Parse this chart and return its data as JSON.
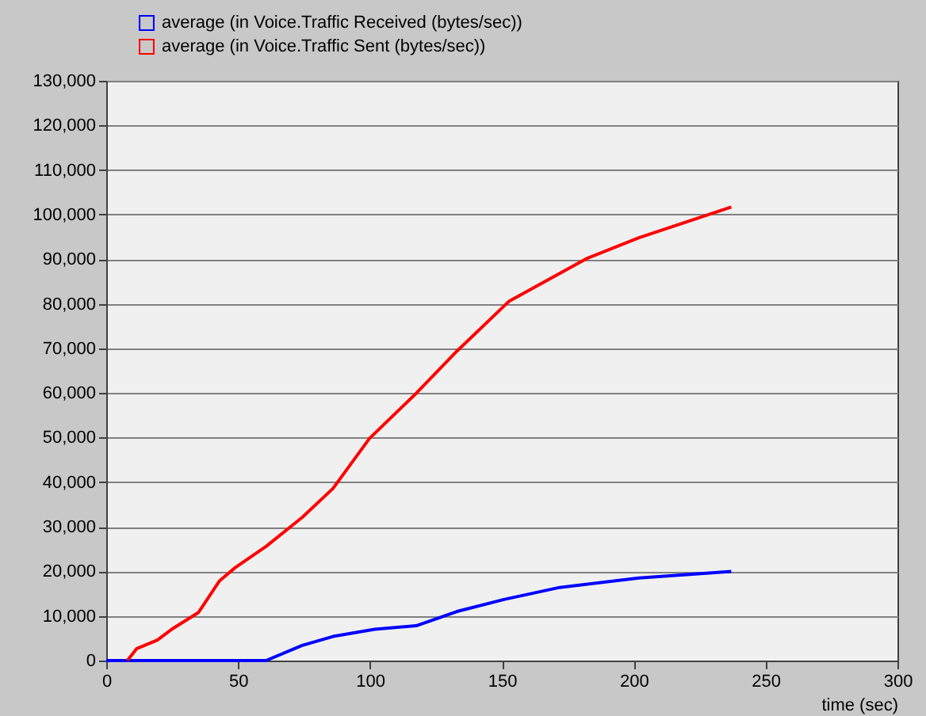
{
  "chart_data": {
    "type": "line",
    "xlabel": "time (sec)",
    "xlim": [
      0,
      300
    ],
    "xticks": [
      0,
      50,
      100,
      150,
      200,
      250,
      300
    ],
    "ylim": [
      0,
      130000
    ],
    "yticks": [
      0,
      {
        "value": 10000,
        "label": "10,000"
      },
      {
        "value": 20000,
        "label": "20,000"
      },
      {
        "value": 30000,
        "label": "30,000"
      },
      {
        "value": 40000,
        "label": "40,000"
      },
      {
        "value": 50000,
        "label": "50,000"
      },
      {
        "value": 60000,
        "label": "60,000"
      },
      {
        "value": 70000,
        "label": "70,000"
      },
      {
        "value": 80000,
        "label": "80,000"
      },
      {
        "value": 90000,
        "label": "90,000"
      },
      {
        "value": 100000,
        "label": "100,000"
      },
      {
        "value": 110000,
        "label": "110,000"
      },
      {
        "value": 120000,
        "label": "120,000"
      },
      {
        "value": 130000,
        "label": "130,000"
      }
    ],
    "grid": "y",
    "legend": "top left",
    "marker": "none",
    "line_style": "solid",
    "series": [
      {
        "name": "average (in Voice.Traffic Received (bytes/sec))",
        "color": "#0000ff",
        "x": [
          0,
          60.6,
          74.3,
          86,
          101.8,
          117.5,
          133,
          150.8,
          172,
          202,
          237
        ],
        "values": [
          0,
          0,
          3400,
          5400,
          7000,
          7800,
          11000,
          13700,
          16400,
          18500,
          20000
        ]
      },
      {
        "name": "average (in Voice.Traffic Sent (bytes/sec))",
        "color": "#ff0000",
        "x": [
          8,
          11.6,
          19.4,
          25.3,
          35,
          43,
          48.8,
          60.6,
          74.3,
          86,
          99.8,
          117.5,
          133,
          152.8,
          182,
          202,
          237
        ],
        "values": [
          0,
          2700,
          4600,
          7200,
          10800,
          17900,
          20800,
          25600,
          32100,
          38600,
          49800,
          59900,
          69400,
          80600,
          90100,
          94800,
          101700
        ]
      }
    ]
  }
}
